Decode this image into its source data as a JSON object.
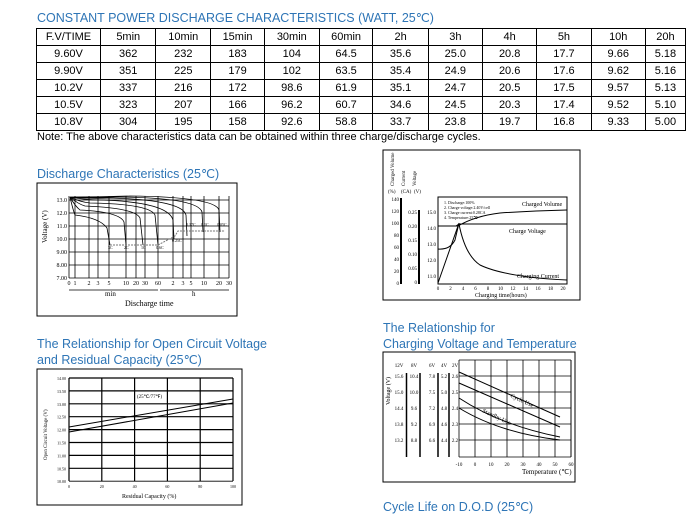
{
  "table": {
    "title": "CONSTANT POWER DISCHARGE CHARACTERISTICS (WATT, 25℃)",
    "headers": [
      "F.V/TIME",
      "5min",
      "10min",
      "15min",
      "30min",
      "60min",
      "2h",
      "3h",
      "4h",
      "5h",
      "10h",
      "20h"
    ],
    "rows": [
      [
        "9.60V",
        "362",
        "232",
        "183",
        "104",
        "64.5",
        "35.6",
        "25.0",
        "20.8",
        "17.7",
        "9.66",
        "5.18"
      ],
      [
        "9.90V",
        "351",
        "225",
        "179",
        "102",
        "63.5",
        "35.4",
        "24.9",
        "20.6",
        "17.6",
        "9.62",
        "5.16"
      ],
      [
        "10.2V",
        "337",
        "216",
        "172",
        "98.6",
        "61.9",
        "35.1",
        "24.7",
        "20.5",
        "17.5",
        "9.57",
        "5.13"
      ],
      [
        "10.5V",
        "323",
        "207",
        "166",
        "96.2",
        "60.7",
        "34.6",
        "24.5",
        "20.3",
        "17.4",
        "9.52",
        "5.10"
      ],
      [
        "10.8V",
        "304",
        "195",
        "158",
        "92.6",
        "58.8",
        "33.7",
        "23.8",
        "19.7",
        "16.8",
        "9.33",
        "5.00"
      ]
    ],
    "note": "Note: The above characteristics data can be obtained within three charge/discharge cycles."
  },
  "discharge": {
    "title": "Discharge Characteristics (25℃)",
    "ylabel": "Voltage (V)",
    "yticks": [
      "13.0",
      "12.0",
      "11.0",
      "10.0",
      "9.00",
      "8.00",
      "7.00"
    ],
    "xticks": [
      "0",
      "1",
      "2",
      "3",
      "5",
      "10",
      "20",
      "30",
      "60",
      "2",
      "3",
      "5",
      "10",
      "20",
      "30"
    ],
    "unit_min": "min",
    "unit_h": "h",
    "xlabel": "Discharge time",
    "rates": [
      "3C",
      "2C",
      "1C",
      "0.6C",
      "0.25C",
      "0.17C",
      "0.1C",
      "0.05C"
    ]
  },
  "charging": {
    "title": [
      "The Relationship for",
      "Charging Voltage and Temperature"
    ],
    "ylabel": "Voltage (V)",
    "cols": [
      "12V",
      "8V",
      "6V",
      "4V",
      "2V"
    ],
    "rows": [
      [
        "15.6",
        "10.4",
        "7.8",
        "5.2",
        "2.6"
      ],
      [
        "15.0",
        "10.0",
        "7.5",
        "5.0",
        "2.5"
      ],
      [
        "14.4",
        "9.6",
        "7.2",
        "4.8",
        "2.4"
      ],
      [
        "13.8",
        "9.2",
        "6.9",
        "4.6",
        "2.3"
      ],
      [
        "13.2",
        "8.8",
        "6.6",
        "4.4",
        "2.2"
      ]
    ],
    "xticks": [
      "-10",
      "0",
      "10",
      "20",
      "30",
      "40",
      "50",
      "60"
    ],
    "xlabel": "Temperature (℃)",
    "cycle": "Cycle Use",
    "standby": "Standby Use"
  },
  "charge_chart": {
    "heads": [
      "Charged Volume",
      "Current",
      "Voltage"
    ],
    "units": [
      "(%)",
      "(CA)",
      "(V)"
    ],
    "pct": [
      "140",
      "120",
      "100",
      "80",
      "60",
      "40",
      "20",
      "0"
    ],
    "ca": [
      "0.25",
      "0.20",
      "0.15",
      "0.10",
      "0.05",
      "0"
    ],
    "v": [
      "15.0",
      "14.0",
      "13.0",
      "12.0",
      "11.0"
    ],
    "notes": [
      "1. Discharge:100%",
      "2. Charge voltage:2.40V/cell",
      "3. Charge current:0.28CA",
      "4. Temperature:25℃"
    ],
    "xticks": [
      "0",
      "2",
      "4",
      "6",
      "8",
      "10",
      "12",
      "14",
      "16",
      "18",
      "20"
    ],
    "xlabel": "Charging time(hours)",
    "series": [
      "Charged Volume",
      "Charge Voltage",
      "Charging Current"
    ]
  },
  "ocv": {
    "title": [
      "The Relationship for Open Circuit Voltage",
      "and Residual Capacity (25℃)"
    ],
    "ylabel": "Open Circuit Voltage (V)",
    "yticks": [
      "14.00",
      "13.50",
      "13.00",
      "12.50",
      "12.00",
      "11.50",
      "11.00",
      "10.50",
      "10.00"
    ],
    "xticks": [
      "0",
      "20",
      "40",
      "60",
      "80",
      "100"
    ],
    "xlabel": "Residual Capacity (%)",
    "temp": "(25℃/77℉)"
  },
  "cycle": {
    "title": "Cycle Life on D.O.D (25℃)"
  }
}
